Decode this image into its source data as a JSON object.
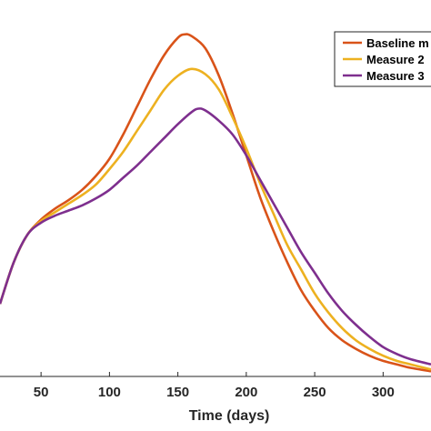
{
  "chart_data": {
    "type": "line",
    "xlabel": "Time (days)",
    "ylabel": "",
    "xlim": [
      20,
      335
    ],
    "ylim": [
      0,
      1
    ],
    "x_ticks": [
      50,
      100,
      150,
      200,
      250,
      300
    ],
    "grid": false,
    "legend_position": "top-right",
    "series": [
      {
        "name": "Baseline m",
        "color": "#D95319",
        "x": [
          20,
          30,
          40,
          50,
          60,
          70,
          80,
          90,
          100,
          110,
          120,
          130,
          140,
          150,
          155,
          160,
          170,
          180,
          190,
          200,
          210,
          220,
          230,
          240,
          250,
          260,
          270,
          280,
          290,
          300,
          310,
          320,
          335
        ],
        "y": [
          0.21,
          0.33,
          0.41,
          0.454,
          0.485,
          0.51,
          0.54,
          0.58,
          0.63,
          0.7,
          0.78,
          0.86,
          0.93,
          0.98,
          0.99,
          0.985,
          0.95,
          0.87,
          0.76,
          0.64,
          0.52,
          0.42,
          0.33,
          0.25,
          0.19,
          0.14,
          0.105,
          0.08,
          0.06,
          0.045,
          0.035,
          0.025,
          0.015
        ]
      },
      {
        "name": "Measure 2",
        "color": "#EDB120",
        "x": [
          20,
          30,
          40,
          50,
          60,
          70,
          80,
          90,
          100,
          110,
          120,
          130,
          140,
          150,
          160,
          170,
          180,
          190,
          200,
          210,
          220,
          230,
          240,
          250,
          260,
          270,
          280,
          290,
          300,
          310,
          320,
          335
        ],
        "y": [
          0.21,
          0.33,
          0.41,
          0.45,
          0.475,
          0.5,
          0.525,
          0.555,
          0.6,
          0.65,
          0.71,
          0.77,
          0.83,
          0.87,
          0.89,
          0.875,
          0.83,
          0.75,
          0.66,
          0.56,
          0.47,
          0.38,
          0.31,
          0.24,
          0.185,
          0.14,
          0.105,
          0.08,
          0.06,
          0.045,
          0.035,
          0.02
        ]
      },
      {
        "name": "Measure 3",
        "color": "#7E2F8E",
        "x": [
          20,
          30,
          40,
          50,
          60,
          70,
          80,
          90,
          100,
          110,
          120,
          130,
          140,
          150,
          160,
          165,
          170,
          180,
          190,
          200,
          210,
          220,
          230,
          240,
          250,
          260,
          270,
          280,
          290,
          300,
          310,
          320,
          335
        ],
        "y": [
          0.21,
          0.33,
          0.41,
          0.445,
          0.465,
          0.48,
          0.495,
          0.515,
          0.54,
          0.575,
          0.61,
          0.65,
          0.69,
          0.73,
          0.765,
          0.775,
          0.77,
          0.74,
          0.7,
          0.64,
          0.57,
          0.5,
          0.43,
          0.36,
          0.3,
          0.24,
          0.19,
          0.15,
          0.115,
          0.085,
          0.065,
          0.05,
          0.035
        ]
      }
    ]
  }
}
